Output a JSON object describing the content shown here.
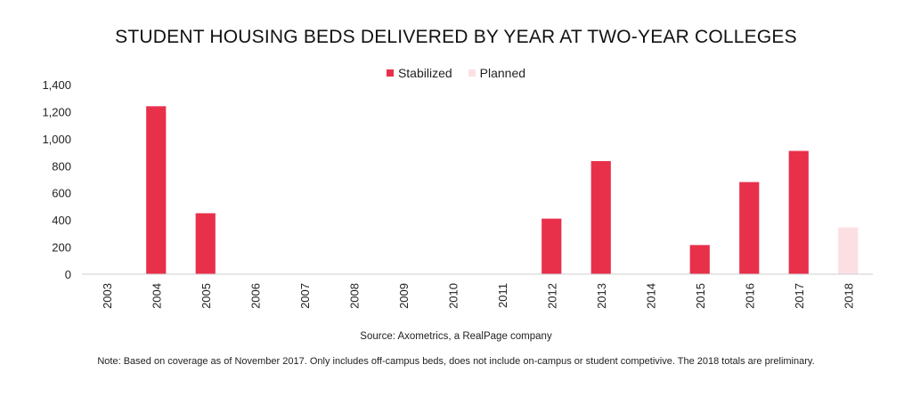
{
  "chart_data": {
    "type": "bar",
    "title": "STUDENT HOUSING BEDS DELIVERED BY YEAR AT TWO-YEAR COLLEGES",
    "xlabel": "",
    "ylabel": "",
    "ylim": [
      0,
      1400
    ],
    "y_ticks": [
      "0",
      "200",
      "400",
      "600",
      "800",
      "1,000",
      "1,200",
      "1,400"
    ],
    "y_tick_values": [
      0,
      200,
      400,
      600,
      800,
      1000,
      1200,
      1400
    ],
    "categories": [
      "2003",
      "2004",
      "2005",
      "2006",
      "2007",
      "2008",
      "2009",
      "2010",
      "2011",
      "2012",
      "2013",
      "2014",
      "2015",
      "2016",
      "2017",
      "2018"
    ],
    "series": [
      {
        "name": "Stabilized",
        "color": "#e8304b",
        "values": [
          0,
          1240,
          450,
          0,
          0,
          0,
          0,
          0,
          0,
          410,
          835,
          0,
          215,
          680,
          910,
          0
        ]
      },
      {
        "name": "Planned",
        "color": "#fcdfe3",
        "values": [
          0,
          0,
          0,
          0,
          0,
          0,
          0,
          0,
          0,
          0,
          0,
          0,
          0,
          0,
          0,
          345
        ]
      }
    ],
    "legend_position": "top-center",
    "grid": false
  },
  "footer": {
    "source": "Source: Axometrics, a RealPage company",
    "note": "Note: Based on coverage as of November 2017. Only includes off-campus beds, does not include on-campus or student competivive. The 2018 totals are preliminary."
  }
}
